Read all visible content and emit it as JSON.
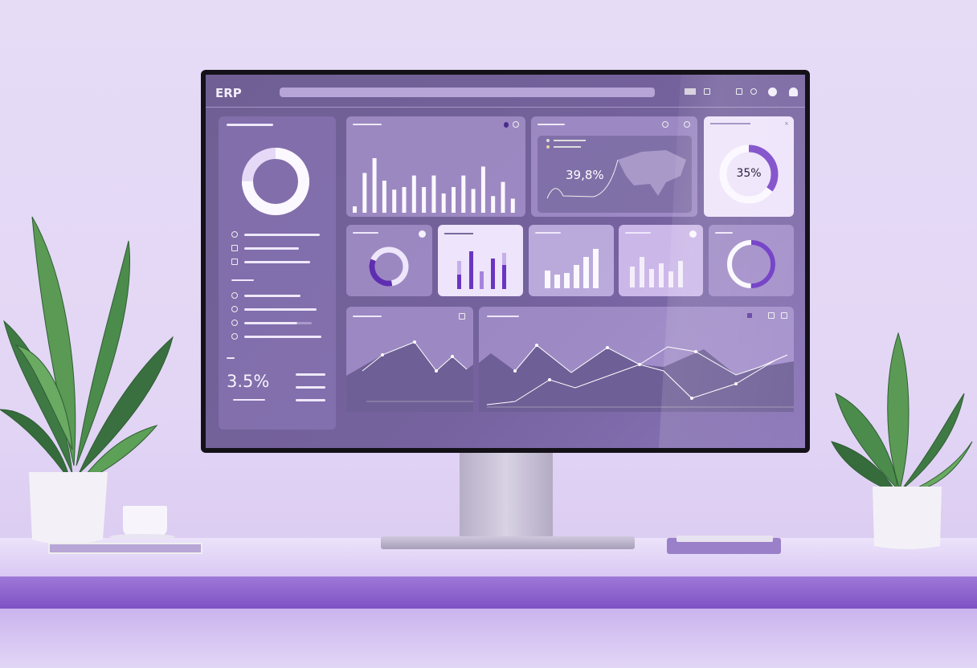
{
  "header": {
    "title": "ERP",
    "search_placeholder": ""
  },
  "sidebar": {
    "kpi_value": "3.5%",
    "donut_fraction": 0.75
  },
  "cards": {
    "bar_chart_values": [
      10,
      62,
      85,
      50,
      36,
      40,
      58,
      40,
      58,
      30,
      40,
      58,
      37,
      72,
      26,
      48,
      22
    ],
    "map_card_value": "39,8%",
    "donut_card_value": "35%",
    "donut_card_fraction": 0.35
  },
  "colors": {
    "accent": "#6a35c2",
    "screen": "#6f5f93",
    "shelf": "#8a5fcf"
  }
}
